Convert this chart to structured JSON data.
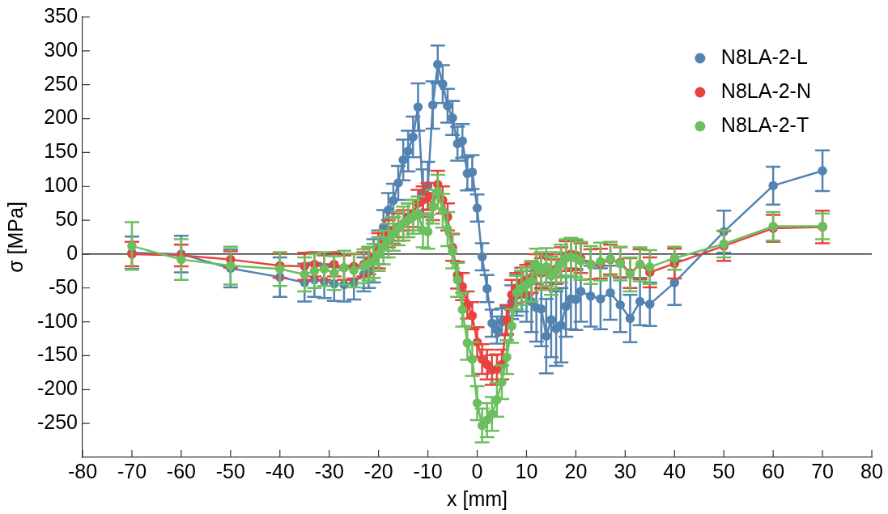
{
  "chart_data": {
    "type": "line",
    "xlabel": "x [mm]",
    "ylabel": "σ [MPa]",
    "xlim": [
      -80,
      80
    ],
    "xticks": [
      -80,
      -70,
      -60,
      -50,
      -40,
      -30,
      -20,
      -10,
      0,
      10,
      20,
      30,
      40,
      50,
      60,
      70,
      80
    ],
    "ylim": [
      -300,
      350
    ],
    "yticks": [
      -250,
      -200,
      -150,
      -100,
      -50,
      0,
      50,
      100,
      150,
      200,
      250,
      300,
      350
    ],
    "grid": false,
    "legend": "top right",
    "marker": "circle",
    "line_style": "solid",
    "ref_lines": [
      {
        "axis": "y",
        "value": 0,
        "color": "#000000"
      }
    ],
    "series": [
      {
        "name": "N8LA-2-L",
        "color": "#5383b1",
        "x": [
          -70,
          -60,
          -50,
          -40,
          -35,
          -33,
          -31,
          -29,
          -27,
          -25,
          -23,
          -22,
          -21,
          -20,
          -19,
          -18,
          -17,
          -16,
          -15,
          -14,
          -13,
          -12,
          -11,
          -10,
          -9,
          -8,
          -7,
          -6,
          -5,
          -4,
          -3,
          -2,
          -1,
          0,
          1,
          2,
          3,
          4,
          5,
          6,
          7,
          8,
          9,
          10,
          11,
          12,
          13,
          14,
          15,
          16,
          17,
          18,
          19,
          20,
          21,
          23,
          25,
          27,
          29,
          31,
          33,
          35,
          40,
          50,
          60,
          70
        ],
        "values": [
          2,
          0,
          -21,
          -34,
          -42,
          -38,
          -40,
          -44,
          -45,
          -42,
          -30,
          -25,
          -10,
          10,
          40,
          65,
          79,
          105,
          139,
          152,
          173,
          217,
          90,
          101,
          220,
          280,
          251,
          219,
          201,
          163,
          167,
          119,
          121,
          68,
          -4,
          -51,
          -102,
          -112,
          -100,
          -98,
          -71,
          -61,
          -55,
          -60,
          -70,
          -79,
          -81,
          -121,
          -97,
          -110,
          -105,
          -77,
          -66,
          -67,
          -55,
          -62,
          -66,
          -57,
          -75,
          -95,
          -70,
          -74,
          -42,
          33,
          101,
          123
        ],
        "errors": [
          24,
          27,
          28,
          29,
          28,
          25,
          25,
          25,
          25,
          25,
          25,
          25,
          32,
          25,
          25,
          25,
          25,
          25,
          30,
          30,
          30,
          35,
          35,
          35,
          35,
          28,
          28,
          25,
          25,
          25,
          25,
          25,
          25,
          20,
          20,
          20,
          20,
          20,
          20,
          20,
          25,
          30,
          30,
          40,
          45,
          50,
          55,
          55,
          55,
          55,
          55,
          45,
          45,
          45,
          45,
          45,
          45,
          40,
          40,
          35,
          35,
          32,
          33,
          31,
          28,
          30
        ]
      },
      {
        "name": "N8LA-2-N",
        "color": "#e8433f",
        "x": [
          -70,
          -60,
          -50,
          -40,
          -35,
          -33,
          -31,
          -29,
          -27,
          -25,
          -23,
          -22,
          -21,
          -20,
          -19,
          -18,
          -17,
          -16,
          -15,
          -14,
          -13,
          -12,
          -11,
          -10,
          -9,
          -8,
          -7,
          -6,
          -5,
          -4,
          -3,
          -2,
          -1,
          0,
          1,
          2,
          3,
          4,
          5,
          6,
          7,
          8,
          9,
          10,
          11,
          12,
          13,
          14,
          15,
          16,
          17,
          18,
          19,
          20,
          21,
          23,
          25,
          27,
          29,
          31,
          33,
          35,
          40,
          50,
          60,
          70
        ],
        "values": [
          0,
          -2,
          -8,
          -17,
          -18,
          -15,
          -20,
          -15,
          -20,
          -18,
          -15,
          -10,
          -5,
          5,
          15,
          30,
          35,
          40,
          45,
          55,
          60,
          75,
          80,
          85,
          70,
          103,
          80,
          55,
          10,
          -31,
          -48,
          -75,
          -91,
          -130,
          -155,
          -163,
          -171,
          -170,
          -163,
          -97,
          -60,
          -50,
          -42,
          -38,
          -35,
          -22,
          -28,
          -25,
          -30,
          -22,
          -12,
          -3,
          0,
          -2,
          -6,
          -15,
          -14,
          -8,
          -12,
          -28,
          -15,
          -27,
          -14,
          12,
          38,
          40
        ],
        "errors": [
          18,
          16,
          12,
          18,
          20,
          18,
          18,
          18,
          18,
          18,
          18,
          20,
          15,
          26,
          20,
          20,
          20,
          20,
          20,
          20,
          20,
          20,
          20,
          20,
          20,
          20,
          20,
          20,
          20,
          20,
          20,
          20,
          20,
          22,
          22,
          22,
          22,
          22,
          22,
          22,
          22,
          22,
          22,
          22,
          22,
          22,
          22,
          22,
          22,
          22,
          22,
          22,
          22,
          22,
          22,
          22,
          22,
          22,
          22,
          22,
          22,
          22,
          22,
          22,
          20,
          24
        ]
      },
      {
        "name": "N8LA-2-T",
        "color": "#6bbf5e",
        "x": [
          -70,
          -60,
          -50,
          -40,
          -35,
          -33,
          -31,
          -29,
          -27,
          -25,
          -23,
          -22,
          -21,
          -20,
          -19,
          -18,
          -17,
          -16,
          -15,
          -14,
          -13,
          -12,
          -11,
          -10,
          -9,
          -8,
          -7,
          -6,
          -5,
          -4,
          -3,
          -2,
          -1,
          0,
          1,
          2,
          3,
          4,
          5,
          6,
          7,
          8,
          9,
          10,
          11,
          12,
          13,
          14,
          15,
          16,
          17,
          18,
          19,
          20,
          21,
          23,
          25,
          27,
          29,
          31,
          33,
          35,
          40,
          50,
          60,
          70
        ],
        "values": [
          12,
          -8,
          -17,
          -22,
          -30,
          -25,
          -22,
          -28,
          -20,
          -24,
          -18,
          -14,
          -10,
          0,
          10,
          20,
          30,
          38,
          45,
          50,
          55,
          60,
          35,
          33,
          70,
          92,
          64,
          37,
          4,
          -38,
          -82,
          -131,
          -155,
          -220,
          -253,
          -245,
          -236,
          -215,
          -189,
          -152,
          -106,
          -57,
          -50,
          -45,
          -40,
          -17,
          -25,
          -19,
          -32,
          -25,
          -14,
          -6,
          -4,
          -6,
          -10,
          -16,
          -11,
          -7,
          -14,
          -30,
          -15,
          -19,
          -6,
          15,
          41,
          41
        ],
        "errors": [
          35,
          30,
          28,
          25,
          25,
          25,
          25,
          25,
          25,
          25,
          25,
          25,
          25,
          25,
          25,
          25,
          25,
          25,
          25,
          25,
          25,
          25,
          25,
          25,
          25,
          25,
          25,
          25,
          25,
          25,
          25,
          25,
          25,
          25,
          25,
          25,
          25,
          25,
          25,
          25,
          25,
          25,
          25,
          25,
          30,
          25,
          28,
          28,
          28,
          28,
          28,
          28,
          28,
          28,
          28,
          28,
          28,
          25,
          25,
          25,
          25,
          25,
          17,
          20,
          21,
          19
        ]
      }
    ]
  }
}
